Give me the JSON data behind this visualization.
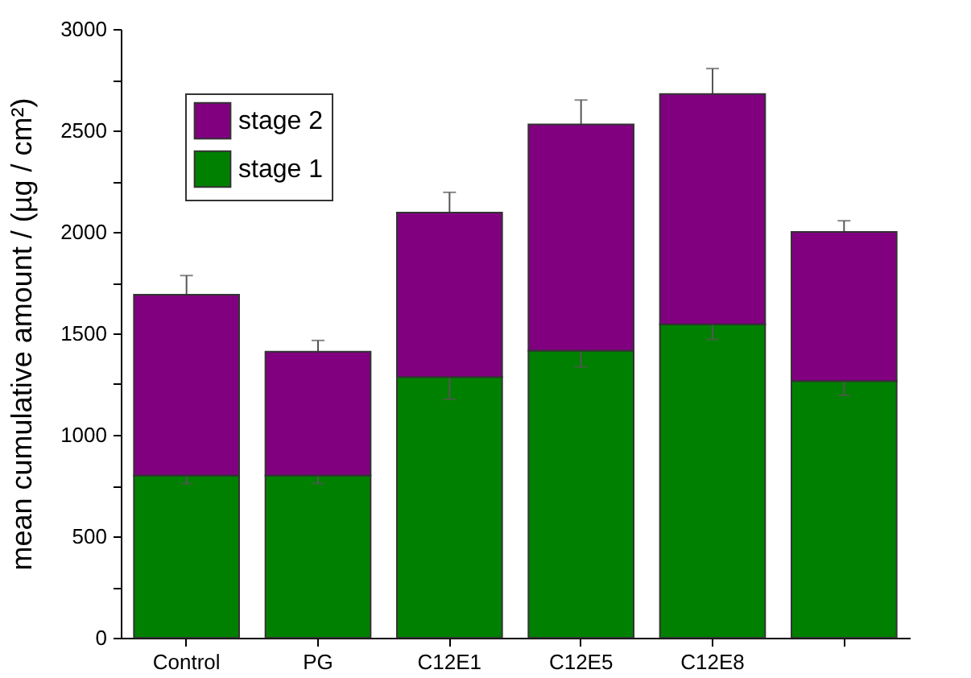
{
  "chart_data": {
    "type": "bar",
    "stacked": true,
    "ylabel": "mean cumulative amount / (µg / cm²)",
    "categories": [
      "Control",
      "PG",
      "C12E1",
      "C12E5",
      "C12E8",
      null
    ],
    "series": [
      {
        "name": "stage 1",
        "color": "#008000",
        "values": [
          800,
          800,
          1285,
          1415,
          1545,
          1265
        ],
        "errors": [
          40,
          40,
          110,
          80,
          75,
          70
        ]
      },
      {
        "name": "stage 2",
        "color": "#800080",
        "values": [
          890,
          610,
          810,
          1115,
          1135,
          735
        ],
        "errors": [
          95,
          55,
          100,
          120,
          125,
          55
        ]
      }
    ],
    "ylim": [
      0,
      3000
    ],
    "yticks": [
      0,
      {
        "value": 250,
        "label": null
      },
      500,
      {
        "value": 750,
        "label": null
      },
      1000,
      {
        "value": 1250,
        "label": null
      },
      1500,
      {
        "value": 1750,
        "label": null
      },
      2000,
      {
        "value": 2250,
        "label": null
      },
      2500,
      {
        "value": 2750,
        "label": null
      },
      3000
    ],
    "grid": false,
    "legend": "top left"
  }
}
